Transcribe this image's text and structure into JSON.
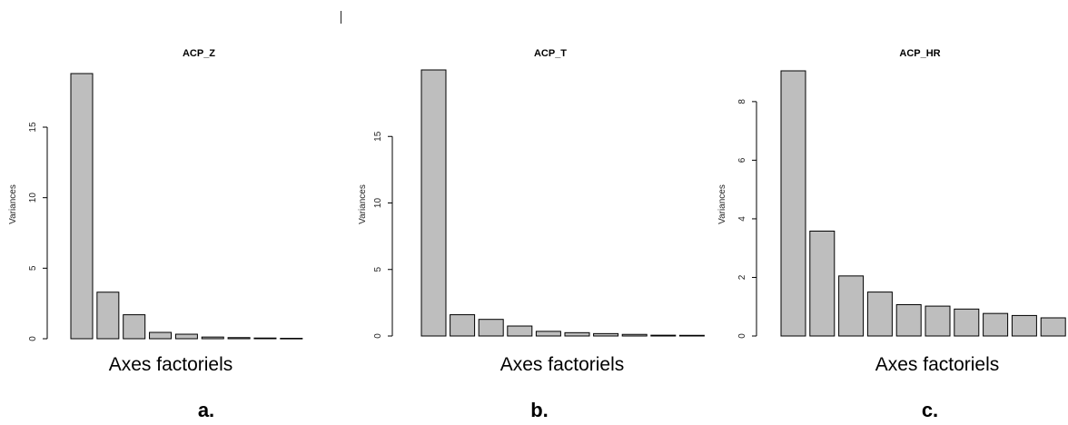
{
  "chart_data": [
    {
      "type": "bar",
      "title": "ACP_Z",
      "ylabel": "Variances",
      "xlabel": "Axes factoriels",
      "panel_label": "a.",
      "ylim": [
        0,
        18.8
      ],
      "yticks": [
        0,
        5,
        10,
        15
      ],
      "values": [
        18.8,
        3.3,
        1.7,
        0.45,
        0.32,
        0.12,
        0.08,
        0.05,
        0.03
      ],
      "bar_color": "#bebebe"
    },
    {
      "type": "bar",
      "title": "ACP_T",
      "ylabel": "Variances",
      "xlabel": "Axes factoriels",
      "panel_label": "b.",
      "ylim": [
        0,
        20.0
      ],
      "yticks": [
        0,
        5,
        10,
        15
      ],
      "values": [
        20.0,
        1.6,
        1.25,
        0.75,
        0.35,
        0.25,
        0.18,
        0.12,
        0.06,
        0.05
      ],
      "bar_color": "#bebebe"
    },
    {
      "type": "bar",
      "title": "ACP_HR",
      "ylabel": "Variances",
      "xlabel": "Axes factoriels",
      "panel_label": "c.",
      "ylim": [
        0,
        9.05
      ],
      "yticks": [
        0,
        2,
        4,
        6,
        8
      ],
      "values": [
        9.05,
        3.58,
        2.05,
        1.5,
        1.07,
        1.02,
        0.92,
        0.77,
        0.7,
        0.62
      ],
      "bar_color": "#bebebe"
    }
  ]
}
